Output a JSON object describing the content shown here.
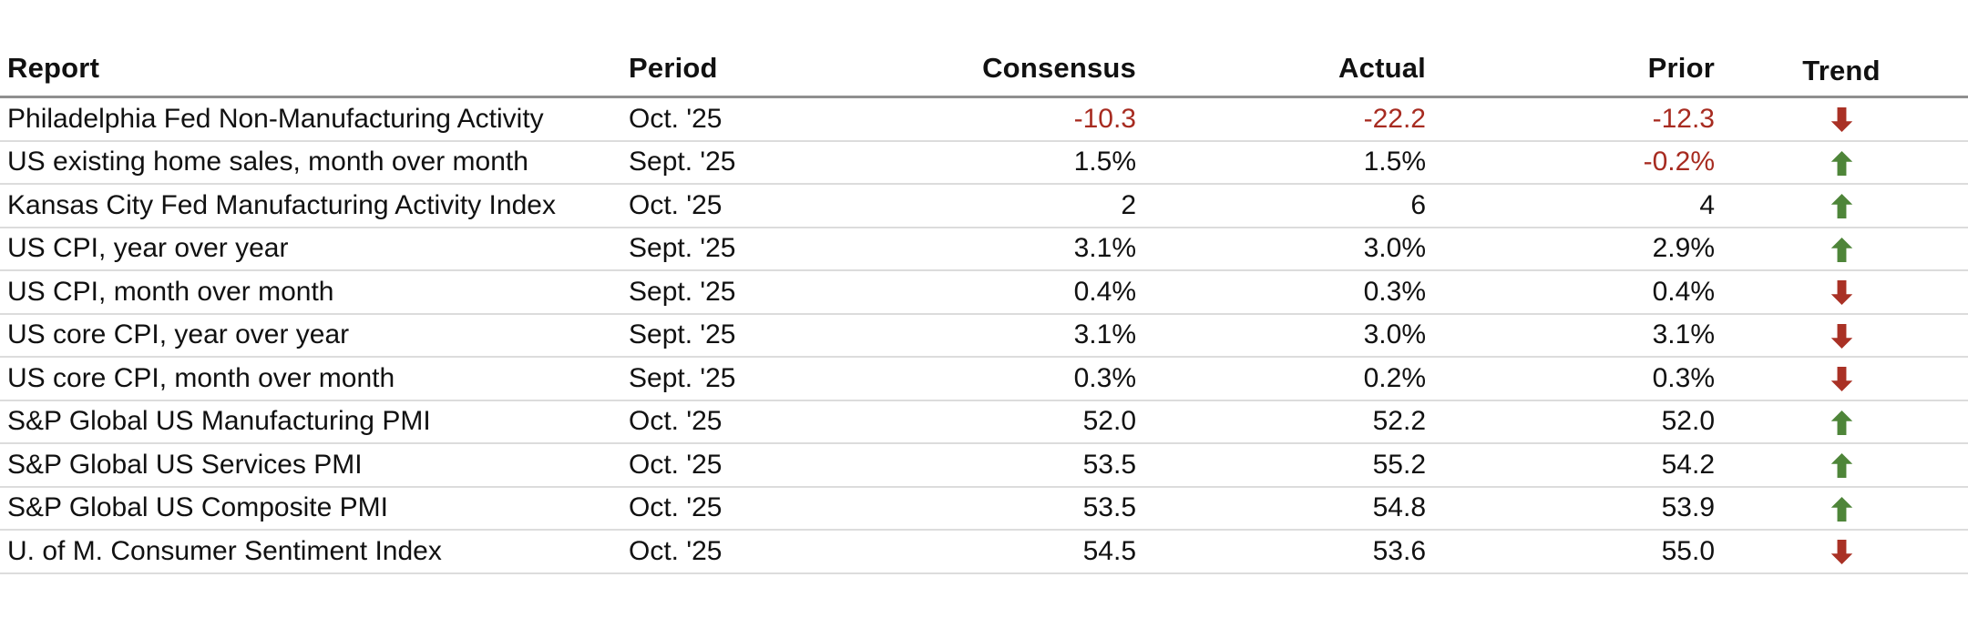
{
  "colors": {
    "negative_text": "#a72b20",
    "trend_up": "#4e8539",
    "trend_down": "#a93125",
    "header_rule": "#8f8f8f",
    "row_rule": "#dcdcdc",
    "text": "#111111",
    "background": "#ffffff"
  },
  "icons": {
    "up": "trend-up-arrow-icon",
    "down": "trend-down-arrow-icon"
  },
  "chart_data": {
    "type": "table",
    "columns": [
      {
        "label": "Report",
        "align": "left"
      },
      {
        "label": "Period",
        "align": "left"
      },
      {
        "label": "Consensus",
        "align": "right"
      },
      {
        "label": "Actual",
        "align": "right"
      },
      {
        "label": "Prior",
        "align": "right"
      },
      {
        "label": "Trend",
        "align": "center"
      }
    ],
    "rows": [
      {
        "report": "Philadelphia Fed Non-Manufacturing Activity",
        "period": "Oct. '25",
        "consensus": "-10.3",
        "actual": "-22.2",
        "prior": "-12.3",
        "trend": "down"
      },
      {
        "report": "US existing home sales, month over month",
        "period": "Sept. '25",
        "consensus": "1.5%",
        "actual": "1.5%",
        "prior": "-0.2%",
        "trend": "up"
      },
      {
        "report": "Kansas City Fed Manufacturing Activity Index",
        "period": "Oct. '25",
        "consensus": "2",
        "actual": "6",
        "prior": "4",
        "trend": "up"
      },
      {
        "report": "US CPI, year over year",
        "period": "Sept. '25",
        "consensus": "3.1%",
        "actual": "3.0%",
        "prior": "2.9%",
        "trend": "up"
      },
      {
        "report": "US CPI, month over month",
        "period": "Sept. '25",
        "consensus": "0.4%",
        "actual": "0.3%",
        "prior": "0.4%",
        "trend": "down"
      },
      {
        "report": "US core CPI, year over year",
        "period": "Sept. '25",
        "consensus": "3.1%",
        "actual": "3.0%",
        "prior": "3.1%",
        "trend": "down"
      },
      {
        "report": "US core CPI, month over month",
        "period": "Sept. '25",
        "consensus": "0.3%",
        "actual": "0.2%",
        "prior": "0.3%",
        "trend": "down"
      },
      {
        "report": "S&P Global US Manufacturing PMI",
        "period": "Oct. '25",
        "consensus": "52.0",
        "actual": "52.2",
        "prior": "52.0",
        "trend": "up"
      },
      {
        "report": "S&P Global US Services PMI",
        "period": "Oct. '25",
        "consensus": "53.5",
        "actual": "55.2",
        "prior": "54.2",
        "trend": "up"
      },
      {
        "report": "S&P Global US Composite PMI",
        "period": "Oct. '25",
        "consensus": "53.5",
        "actual": "54.8",
        "prior": "53.9",
        "trend": "up"
      },
      {
        "report": "U. of M. Consumer Sentiment Index",
        "period": "Oct. '25",
        "consensus": "54.5",
        "actual": "53.6",
        "prior": "55.0",
        "trend": "down"
      }
    ]
  }
}
